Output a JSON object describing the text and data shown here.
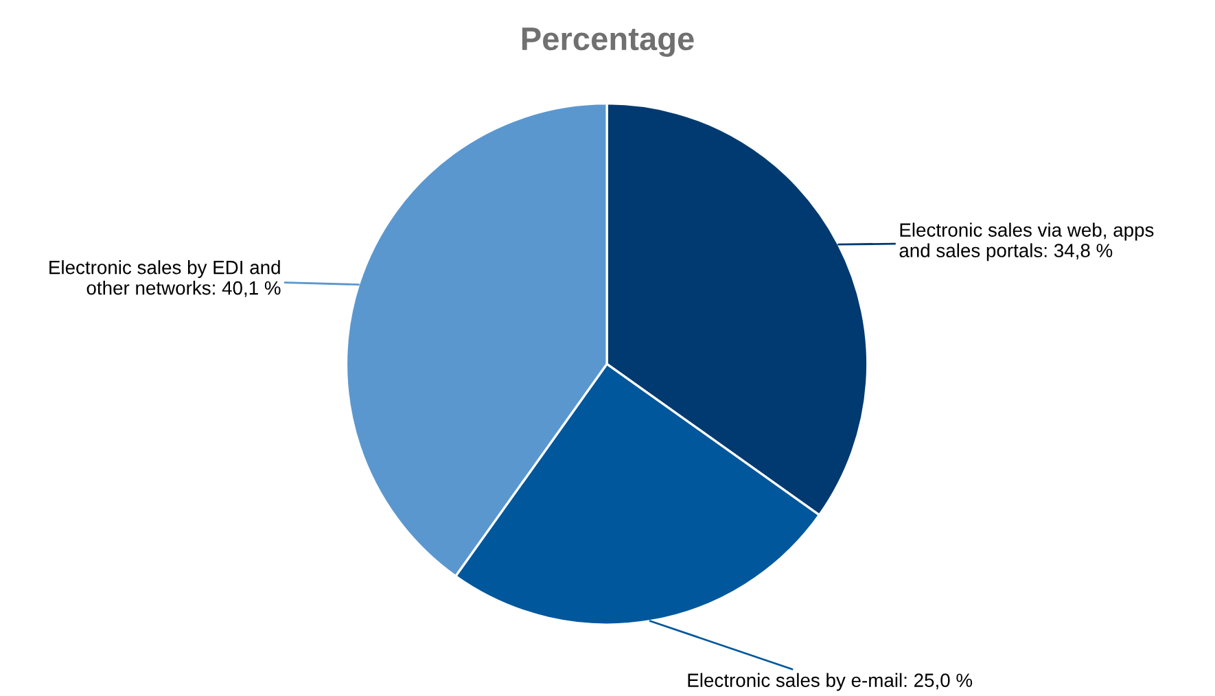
{
  "chart_data": {
    "type": "pie",
    "title": "Percentage",
    "categories": [
      "Electronic sales via web, apps\nand sales portals",
      "Electronic sales by e-mail",
      "Electronic sales by EDI and\nother networks"
    ],
    "values": [
      34.8,
      25.0,
      40.1
    ],
    "colors": [
      "#003a70",
      "#00579b",
      "#5b97cf"
    ],
    "value_labels": [
      "34,8 %",
      "25,0 %",
      "40,1 %"
    ]
  }
}
